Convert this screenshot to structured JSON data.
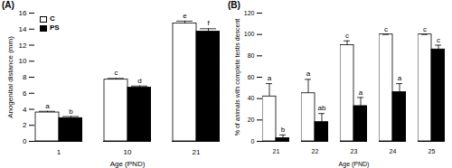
{
  "chart_data": [
    {
      "type": "bar",
      "title": "(A)",
      "x_label": "Age (PND)",
      "y_label": "Anogenital distance (mm)",
      "categories": [
        1,
        10,
        21
      ],
      "series": [
        {
          "name": "C",
          "color": "#ffffff",
          "values": [
            3.6,
            7.7,
            14.7
          ],
          "errors": [
            0.15,
            0.15,
            0.3
          ],
          "letters": [
            "a",
            "c",
            "e"
          ]
        },
        {
          "name": "PS",
          "color": "#000000",
          "values": [
            2.9,
            6.7,
            13.7
          ],
          "errors": [
            0.2,
            0.2,
            0.35
          ],
          "letters": [
            "b",
            "d",
            "f"
          ]
        }
      ],
      "ylim": [
        0,
        16
      ],
      "yticks": [
        0,
        2,
        4,
        6,
        8,
        10,
        12,
        14,
        16
      ],
      "grid": false,
      "legend": "top-left"
    },
    {
      "type": "bar",
      "title": "(B)",
      "x_label": "Age (PND)",
      "y_label": "% of animals with complete testis descent",
      "categories": [
        21,
        22,
        23,
        24,
        25
      ],
      "series": [
        {
          "name": "C",
          "color": "#ffffff",
          "values": [
            42,
            45,
            90,
            100,
            100
          ],
          "errors": [
            12,
            13,
            4,
            0,
            0
          ],
          "letters": [
            "a",
            "a",
            "c",
            "c",
            "c"
          ]
        },
        {
          "name": "PS",
          "color": "#000000",
          "values": [
            3,
            18,
            33,
            46,
            86
          ],
          "errors": [
            3,
            8,
            8,
            8,
            4
          ],
          "letters": [
            "b",
            "ab",
            "a",
            "a",
            "c"
          ]
        }
      ],
      "ylim": [
        0,
        120
      ],
      "yticks": [
        0,
        20,
        40,
        60,
        80,
        100,
        120
      ],
      "grid": false
    }
  ]
}
